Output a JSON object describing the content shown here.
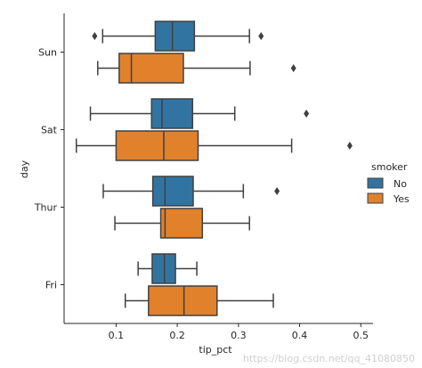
{
  "chart_data": {
    "type": "box",
    "orientation": "horizontal",
    "title": "",
    "xlabel": "tip_pct",
    "ylabel": "day",
    "xlim": [
      0.015,
      0.52
    ],
    "x_ticks": [
      0.1,
      0.2,
      0.3,
      0.4,
      0.5
    ],
    "x_tick_labels": [
      "0.1",
      "0.2",
      "0.3",
      "0.4",
      "0.5"
    ],
    "categories": [
      "Sun",
      "Sat",
      "Thur",
      "Fri"
    ],
    "hue_title": "smoker",
    "grid": false,
    "legend_position": "right",
    "series": [
      {
        "name": "No",
        "color": "#3274a1",
        "boxes": [
          {
            "category": "Sun",
            "whisker_low": 0.078,
            "q1": 0.164,
            "median": 0.192,
            "q3": 0.228,
            "whisker_high": 0.318,
            "outliers": [
              0.065,
              0.337
            ]
          },
          {
            "category": "Sat",
            "whisker_low": 0.058,
            "q1": 0.158,
            "median": 0.175,
            "q3": 0.225,
            "whisker_high": 0.294,
            "outliers": [
              0.411
            ]
          },
          {
            "category": "Thur",
            "whisker_low": 0.079,
            "q1": 0.16,
            "median": 0.18,
            "q3": 0.226,
            "whisker_high": 0.308,
            "outliers": [
              0.363
            ]
          },
          {
            "category": "Fri",
            "whisker_low": 0.136,
            "q1": 0.159,
            "median": 0.179,
            "q3": 0.197,
            "whisker_high": 0.232,
            "outliers": []
          }
        ]
      },
      {
        "name": "Yes",
        "color": "#e1812c",
        "boxes": [
          {
            "category": "Sun",
            "whisker_low": 0.07,
            "q1": 0.105,
            "median": 0.125,
            "q3": 0.21,
            "whisker_high": 0.319,
            "outliers": [
              0.39
            ]
          },
          {
            "category": "Sat",
            "whisker_low": 0.035,
            "q1": 0.1,
            "median": 0.178,
            "q3": 0.234,
            "whisker_high": 0.387,
            "outliers": [
              0.482
            ]
          },
          {
            "category": "Thur",
            "whisker_low": 0.098,
            "q1": 0.173,
            "median": 0.18,
            "q3": 0.241,
            "whisker_high": 0.318,
            "outliers": []
          },
          {
            "category": "Fri",
            "whisker_low": 0.115,
            "q1": 0.153,
            "median": 0.211,
            "q3": 0.265,
            "whisker_high": 0.357,
            "outliers": []
          }
        ]
      }
    ]
  },
  "watermark": "https://blog.csdn.net/qq_41080850"
}
